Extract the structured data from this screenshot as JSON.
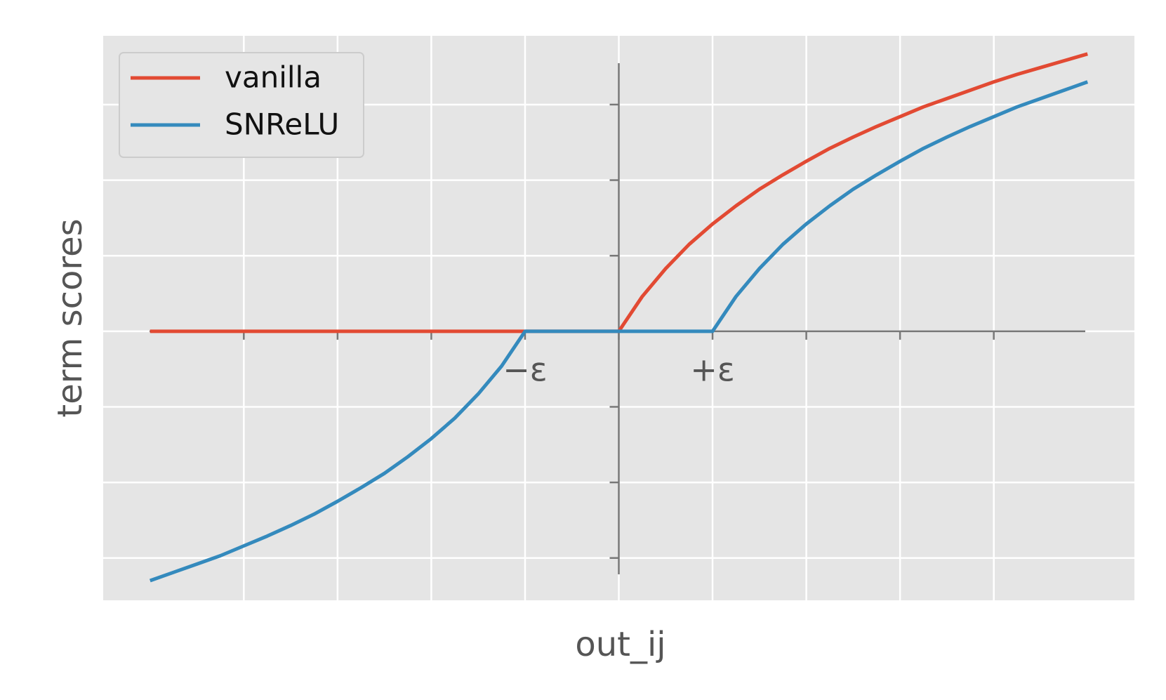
{
  "chart_data": {
    "type": "line",
    "xlabel": "out_ij",
    "ylabel": "term scores",
    "x": [
      -5,
      -4.75,
      -4.5,
      -4.25,
      -4,
      -3.75,
      -3.5,
      -3.25,
      -3,
      -2.75,
      -2.5,
      -2.25,
      -2,
      -1.75,
      -1.5,
      -1.25,
      -1,
      -0.75,
      -0.5,
      -0.25,
      0,
      0.25,
      0.5,
      0.75,
      1,
      1.25,
      1.5,
      1.75,
      2,
      2.25,
      2.5,
      2.75,
      3,
      3.25,
      3.5,
      3.75,
      4,
      4.25,
      4.5,
      4.75,
      5
    ],
    "series": [
      {
        "name": "vanilla",
        "color": "#E24A33",
        "values": [
          0,
          0,
          0,
          0,
          0,
          0,
          0,
          0,
          0,
          0,
          0,
          0,
          0,
          0,
          0,
          0,
          0,
          0,
          0,
          0,
          0,
          0.46,
          0.83,
          1.15,
          1.42,
          1.66,
          1.88,
          2.07,
          2.25,
          2.42,
          2.57,
          2.71,
          2.84,
          2.97,
          3.08,
          3.19,
          3.3,
          3.4,
          3.49,
          3.58,
          3.67
        ]
      },
      {
        "name": "SNReLU",
        "color": "#348ABD",
        "values": [
          -3.3,
          -3.19,
          -3.08,
          -2.97,
          -2.84,
          -2.71,
          -2.57,
          -2.42,
          -2.25,
          -2.07,
          -1.88,
          -1.66,
          -1.42,
          -1.15,
          -0.83,
          -0.46,
          0,
          0,
          0,
          0,
          0,
          0,
          0,
          0,
          0,
          0.46,
          0.83,
          1.15,
          1.42,
          1.66,
          1.88,
          2.07,
          2.25,
          2.42,
          2.57,
          2.71,
          2.84,
          2.97,
          3.08,
          3.19,
          3.3
        ]
      }
    ],
    "xlim": [
      -5.5,
      5.5
    ],
    "ylim": [
      -3.56,
      3.91
    ],
    "xticks": [
      {
        "value": -4,
        "label": null
      },
      {
        "value": -3,
        "label": null
      },
      {
        "value": -2,
        "label": null
      },
      {
        "value": -1,
        "label": "−ε"
      },
      {
        "value": 0,
        "label": null
      },
      {
        "value": 1,
        "label": "+ε"
      },
      {
        "value": 2,
        "label": null
      },
      {
        "value": 3,
        "label": null
      },
      {
        "value": 4,
        "label": null
      }
    ],
    "yticks": [
      {
        "value": -3,
        "label": null
      },
      {
        "value": -2,
        "label": null
      },
      {
        "value": -1,
        "label": null
      },
      {
        "value": 0,
        "label": null
      },
      {
        "value": 1,
        "label": null
      },
      {
        "value": 2,
        "label": null
      },
      {
        "value": 3,
        "label": null
      }
    ],
    "grid": true,
    "legend": "upper left"
  }
}
